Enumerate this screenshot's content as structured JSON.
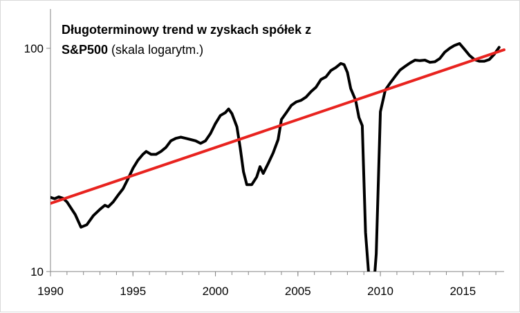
{
  "chart_data": {
    "type": "line",
    "title_line1": "Długoterminowy trend w zyskach spółek z",
    "title_line2_bold": "S&P500",
    "title_line2_rest": " (skala logarytm.)",
    "xlabel": "",
    "ylabel": "",
    "xlim": [
      1990,
      2017.5
    ],
    "ylim": [
      10,
      150
    ],
    "yscale": "log",
    "grid": false,
    "x_ticks": [
      1990,
      1995,
      2000,
      2005,
      2010,
      2015
    ],
    "y_ticks": [
      10,
      100
    ],
    "series": [
      {
        "color": "#000000",
        "points": [
          [
            1990.0,
            21.5
          ],
          [
            1990.25,
            21.2
          ],
          [
            1990.5,
            21.6
          ],
          [
            1990.75,
            21.3
          ],
          [
            1991.0,
            20.5
          ],
          [
            1991.5,
            18.0
          ],
          [
            1991.85,
            15.8
          ],
          [
            1992.2,
            16.2
          ],
          [
            1992.6,
            17.8
          ],
          [
            1993.0,
            19.0
          ],
          [
            1993.3,
            19.8
          ],
          [
            1993.5,
            19.5
          ],
          [
            1993.8,
            20.5
          ],
          [
            1994.1,
            22.0
          ],
          [
            1994.4,
            23.5
          ],
          [
            1994.7,
            26.0
          ],
          [
            1995.0,
            29.0
          ],
          [
            1995.3,
            31.5
          ],
          [
            1995.6,
            33.5
          ],
          [
            1995.8,
            34.5
          ],
          [
            1996.1,
            33.5
          ],
          [
            1996.4,
            33.5
          ],
          [
            1996.7,
            34.5
          ],
          [
            1997.0,
            36.0
          ],
          [
            1997.3,
            38.5
          ],
          [
            1997.6,
            39.5
          ],
          [
            1997.9,
            40.0
          ],
          [
            1998.2,
            39.5
          ],
          [
            1998.5,
            39.0
          ],
          [
            1998.8,
            38.5
          ],
          [
            1999.1,
            37.5
          ],
          [
            1999.4,
            38.5
          ],
          [
            1999.7,
            41.5
          ],
          [
            2000.0,
            46.0
          ],
          [
            2000.3,
            50.0
          ],
          [
            2000.6,
            51.5
          ],
          [
            2000.8,
            53.5
          ],
          [
            2001.0,
            51.0
          ],
          [
            2001.3,
            44.5
          ],
          [
            2001.5,
            36.0
          ],
          [
            2001.7,
            28.0
          ],
          [
            2001.9,
            24.5
          ],
          [
            2002.2,
            24.5
          ],
          [
            2002.5,
            26.5
          ],
          [
            2002.7,
            29.5
          ],
          [
            2002.9,
            27.5
          ],
          [
            2003.2,
            30.5
          ],
          [
            2003.5,
            34.0
          ],
          [
            2003.8,
            39.0
          ],
          [
            2004.0,
            48.0
          ],
          [
            2004.3,
            51.5
          ],
          [
            2004.6,
            55.5
          ],
          [
            2004.9,
            57.5
          ],
          [
            2005.2,
            58.5
          ],
          [
            2005.5,
            60.5
          ],
          [
            2005.8,
            64.0
          ],
          [
            2006.1,
            67.0
          ],
          [
            2006.4,
            72.5
          ],
          [
            2006.7,
            74.5
          ],
          [
            2007.0,
            79.5
          ],
          [
            2007.3,
            82.0
          ],
          [
            2007.6,
            85.5
          ],
          [
            2007.8,
            84.5
          ],
          [
            2008.0,
            78.0
          ],
          [
            2008.2,
            66.0
          ],
          [
            2008.5,
            58.5
          ],
          [
            2008.7,
            49.0
          ],
          [
            2008.9,
            45.0
          ],
          [
            2009.1,
            15.0
          ],
          [
            2009.35,
            8.5
          ],
          [
            2009.6,
            8.5
          ],
          [
            2009.75,
            12.0
          ],
          [
            2010.0,
            52.0
          ],
          [
            2010.3,
            65.0
          ],
          [
            2010.6,
            70.0
          ],
          [
            2010.9,
            75.0
          ],
          [
            2011.2,
            80.0
          ],
          [
            2011.5,
            83.0
          ],
          [
            2011.8,
            86.0
          ],
          [
            2012.1,
            88.5
          ],
          [
            2012.4,
            88.0
          ],
          [
            2012.7,
            88.5
          ],
          [
            2013.0,
            86.5
          ],
          [
            2013.3,
            87.0
          ],
          [
            2013.6,
            90.0
          ],
          [
            2013.9,
            96.0
          ],
          [
            2014.2,
            100.0
          ],
          [
            2014.5,
            103.0
          ],
          [
            2014.8,
            105.0
          ],
          [
            2015.1,
            99.0
          ],
          [
            2015.4,
            93.0
          ],
          [
            2015.7,
            89.0
          ],
          [
            2016.0,
            87.5
          ],
          [
            2016.3,
            87.5
          ],
          [
            2016.6,
            89.0
          ],
          [
            2016.9,
            94.0
          ],
          [
            2017.2,
            101.0
          ]
        ]
      },
      {
        "color": "#e8231f",
        "points": [
          [
            1990.0,
            20.2
          ],
          [
            2017.5,
            98.5
          ]
        ]
      }
    ]
  }
}
